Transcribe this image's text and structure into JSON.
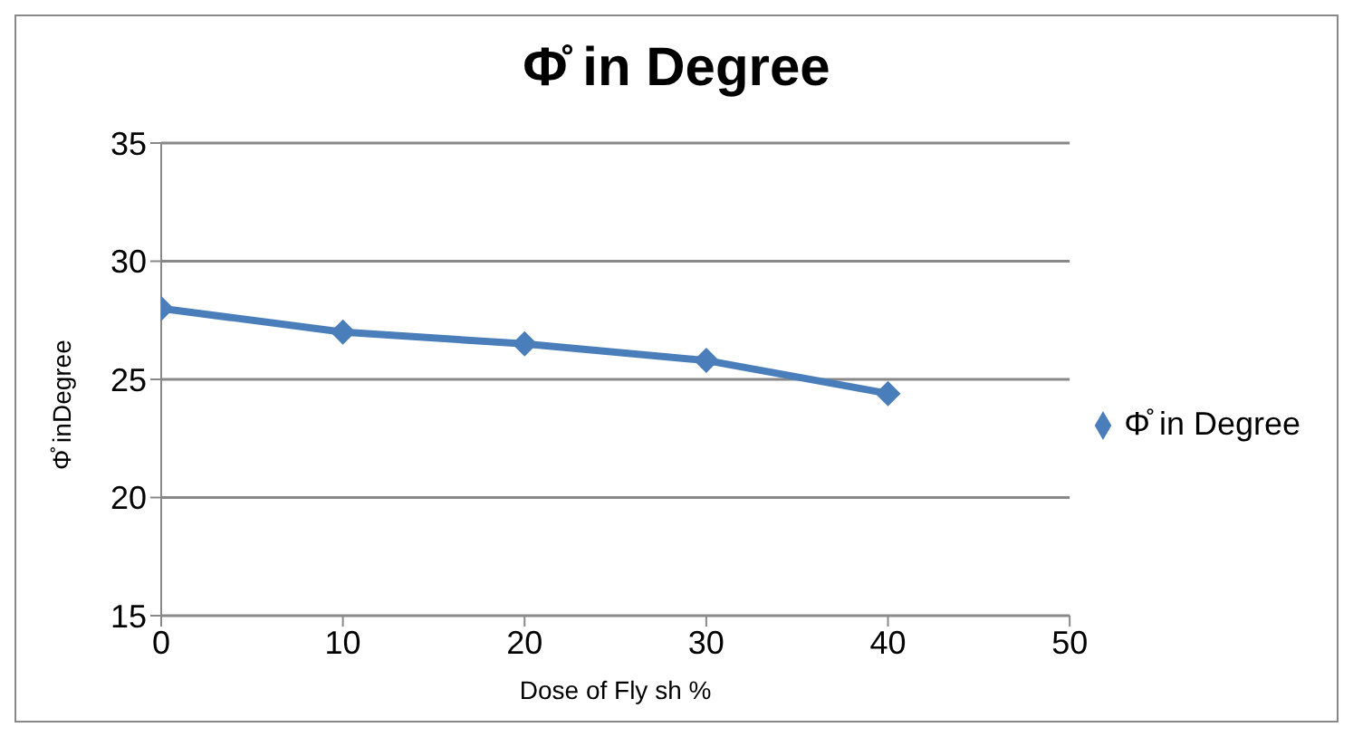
{
  "chart_data": {
    "type": "line",
    "title": "Φ̊ in Degree",
    "xlabel": "Dose of Fly sh %",
    "ylabel": "Φ̊ inDegree",
    "x": [
      0,
      10,
      20,
      30,
      40
    ],
    "series": [
      {
        "name": "Φ̊ in Degree",
        "color": "#4a7ebb",
        "values": [
          28,
          27,
          26.5,
          25.8,
          24.4
        ]
      }
    ],
    "xlim": [
      0,
      50
    ],
    "xticks": [
      0,
      10,
      20,
      30,
      40,
      50
    ],
    "ylim": [
      15,
      35
    ],
    "yticks": [
      15,
      20,
      25,
      30,
      35
    ],
    "grid": "y",
    "legend": "right",
    "marker": "diamond",
    "line_style": "solid"
  }
}
